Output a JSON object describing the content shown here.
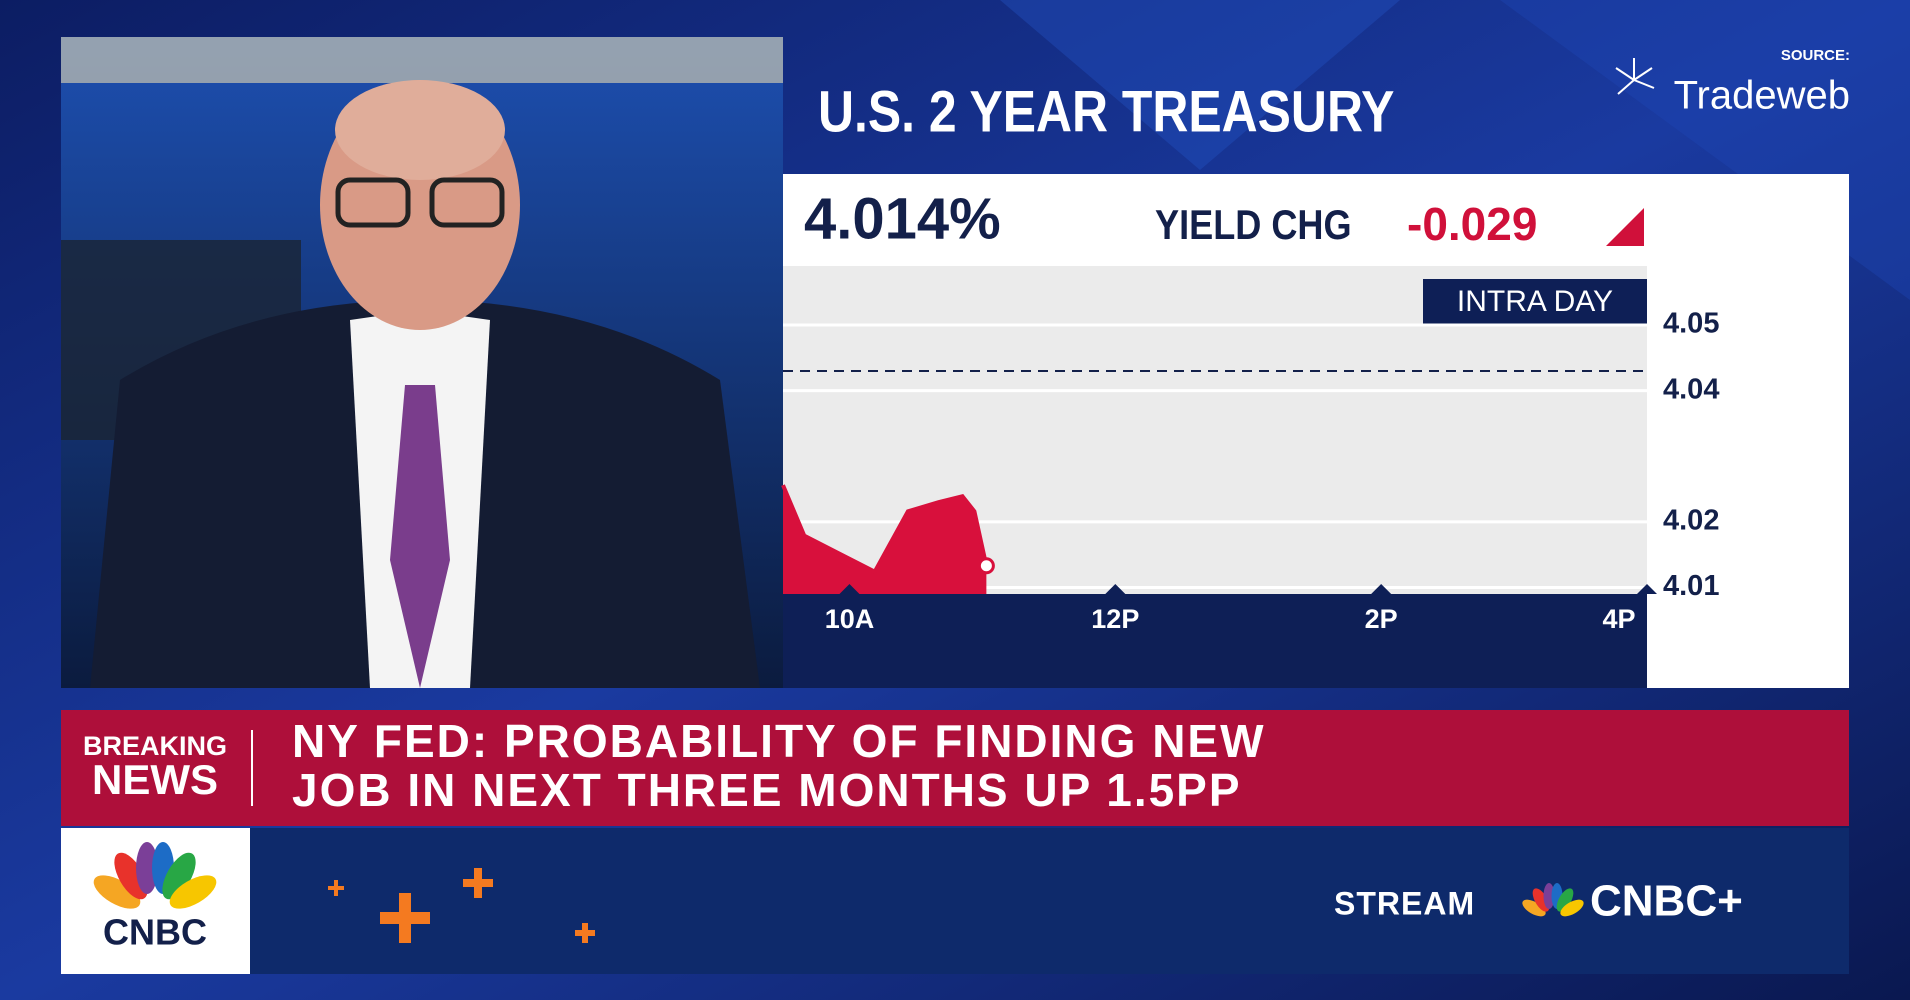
{
  "chart_data": {
    "type": "area",
    "title": "U.S. 2 YEAR TREASURY",
    "source_label": "SOURCE:",
    "source": "Tradeweb",
    "yield": "4.014%",
    "yield_change_label": "YIELD CHG",
    "yield_change": "-0.029",
    "range_label": "INTRA DAY",
    "x": [
      9.5,
      9.66,
      9.93,
      10.19,
      10.44,
      10.67,
      10.85,
      10.94,
      11.03
    ],
    "values": [
      4.0256,
      4.0179,
      4.0151,
      4.0124,
      4.0216,
      4.023,
      4.0239,
      4.0216,
      4.0133
    ],
    "color": "#d8103c",
    "reference_line": 4.043,
    "xlim": [
      9.5,
      16
    ],
    "xticks": [
      {
        "value": 10,
        "label": "10A"
      },
      {
        "value": 12,
        "label": "12P"
      },
      {
        "value": 14,
        "label": "2P"
      },
      {
        "value": 16,
        "label": "4P"
      }
    ],
    "ylim": [
      4.009,
      4.059
    ],
    "yticks": [
      4.01,
      4.02,
      4.04,
      4.05
    ],
    "grid": true
  },
  "breaking": {
    "label_top": "BREAKING",
    "label_bottom": "NEWS",
    "headline": [
      "NY FED: PROBABILITY OF FINDING NEW",
      "JOB IN NEXT THREE MONTHS UP 1.5PP"
    ]
  },
  "footer": {
    "network": "CNBC",
    "stream": "STREAM",
    "service": "CNBC+"
  }
}
